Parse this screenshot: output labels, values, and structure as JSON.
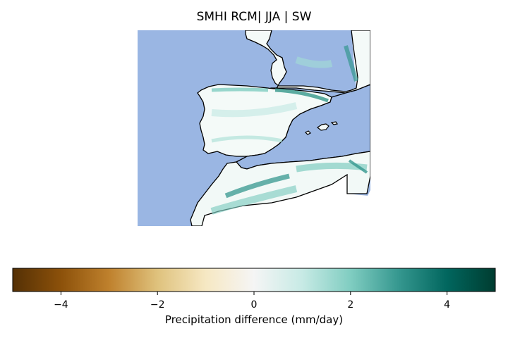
{
  "title": "SMHI RCM| JJA | SW",
  "colorbar": {
    "label": "Precipitation difference (mm/day)",
    "range": [
      -5,
      5
    ],
    "ticks": [
      {
        "value": -4,
        "label": "−4"
      },
      {
        "value": -2,
        "label": "−2"
      },
      {
        "value": 0,
        "label": "0"
      },
      {
        "value": 2,
        "label": "2"
      },
      {
        "value": 4,
        "label": "4"
      }
    ],
    "colormap": "BrBG",
    "stops": [
      "#543005",
      "#8c510a",
      "#bf812d",
      "#dfc27d",
      "#f6e8c3",
      "#f5f5f5",
      "#c7eae5",
      "#80cdc1",
      "#35978f",
      "#01665e",
      "#003c30"
    ]
  },
  "map": {
    "ocean_color": "#9ab6e3",
    "land_color": "#f7fbfa",
    "coastline_color": "#000000"
  }
}
